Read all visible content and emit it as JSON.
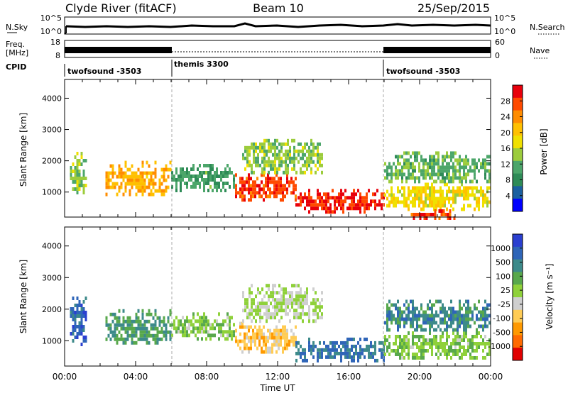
{
  "header": {
    "station": "Clyde River (fitACF)",
    "beam": "Beam 10",
    "date": "25/Sep/2015"
  },
  "top_panels": {
    "nsky_label": "N.Sky",
    "nsky_ticks": [
      "10^5",
      "10^0"
    ],
    "nsearch_label": "N.Search",
    "nsearch_ticks": [
      "10^5",
      "10^0"
    ],
    "freq_label": "Freq.",
    "freq_unit": "[MHz]",
    "freq_ticks": [
      "18",
      "8"
    ],
    "nave_label": "Nave",
    "nave_ticks": [
      "60",
      "0"
    ],
    "cpid_label": "CPID",
    "cpid_segments": [
      {
        "start": 0.0,
        "end": 6.0,
        "label": "twofsound -3503"
      },
      {
        "start": 6.0,
        "end": 18.0,
        "label": "themis 3300"
      },
      {
        "start": 18.0,
        "end": 24.0,
        "label": "twofsound -3503"
      }
    ]
  },
  "panel_labels": {
    "ylabel_power": "Slant Range [km]",
    "ylabel_velocity": "Slant Range [km]"
  },
  "colorbars": {
    "power_label": "Power [dB]",
    "power_ticks": [
      "28",
      "24",
      "20",
      "16",
      "12",
      "8",
      "4"
    ],
    "power_colors": [
      "#e8000b",
      "#ff4a00",
      "#ff8c00",
      "#ffc000",
      "#f0e000",
      "#9ccc3c",
      "#4ca66a",
      "#2e8b57",
      "#1a5fa0",
      "#0000ff"
    ],
    "velocity_label": "Velocity [m s⁻¹]",
    "velocity_ticks": [
      "1000",
      "500",
      "100",
      "25",
      "-25",
      "-100",
      "-500",
      "-1000"
    ],
    "velocity_colors": [
      "#2a3fd0",
      "#2f65b8",
      "#3d8a8a",
      "#58a84c",
      "#8fd13a",
      "#cfcfcf",
      "#ffcc55",
      "#ff9900",
      "#ff6a00",
      "#e00000"
    ]
  },
  "x_axis": {
    "title": "Time UT",
    "ticks": [
      "00:00",
      "04:00",
      "08:00",
      "12:00",
      "16:00",
      "20:00",
      "00:00"
    ]
  },
  "chart_data": [
    {
      "type": "heatmap",
      "title": "Power",
      "xlabel": "Time UT",
      "ylabel": "Slant Range [km]",
      "xlim": [
        0,
        24
      ],
      "ylim": [
        200,
        4600
      ],
      "yticks": [
        1000,
        2000,
        3000,
        4000
      ],
      "colorbar_label": "Power [dB]",
      "colorbar_range": [
        0,
        32
      ],
      "regions": [
        {
          "t0": 0.3,
          "t1": 1.2,
          "r0": 900,
          "r1": 2400,
          "value": 14
        },
        {
          "t0": 2.3,
          "t1": 6.0,
          "r0": 900,
          "r1": 2000,
          "value": 22
        },
        {
          "t0": 6.0,
          "t1": 9.5,
          "r0": 1100,
          "r1": 1900,
          "value": 10
        },
        {
          "t0": 9.6,
          "t1": 13.0,
          "r0": 700,
          "r1": 1600,
          "value": 28
        },
        {
          "t0": 10.0,
          "t1": 14.5,
          "r0": 1600,
          "r1": 2700,
          "value": 14
        },
        {
          "t0": 13.0,
          "t1": 18.0,
          "r0": 400,
          "r1": 1100,
          "value": 29
        },
        {
          "t0": 18.0,
          "t1": 24.0,
          "r0": 500,
          "r1": 1300,
          "value": 18
        },
        {
          "t0": 18.0,
          "t1": 24.0,
          "r0": 1300,
          "r1": 2300,
          "value": 12
        },
        {
          "t0": 19.5,
          "t1": 22.0,
          "r0": 200,
          "r1": 450,
          "value": 28
        }
      ]
    },
    {
      "type": "heatmap",
      "title": "Velocity",
      "xlabel": "Time UT",
      "ylabel": "Slant Range [km]",
      "xlim": [
        0,
        24
      ],
      "ylim": [
        200,
        4600
      ],
      "yticks": [
        1000,
        2000,
        3000,
        4000
      ],
      "colorbar_label": "Velocity [m s⁻¹]",
      "colorbar_range": [
        -1000,
        1000
      ],
      "regions": [
        {
          "t0": 0.3,
          "t1": 1.2,
          "r0": 900,
          "r1": 2400,
          "value": 700
        },
        {
          "t0": 2.3,
          "t1": 6.0,
          "r0": 900,
          "r1": 2000,
          "value": 400
        },
        {
          "t0": 6.0,
          "t1": 9.5,
          "r0": 1100,
          "r1": 1900,
          "value": 150
        },
        {
          "t0": 9.6,
          "t1": 13.0,
          "r0": 700,
          "r1": 1600,
          "value": -300
        },
        {
          "t0": 10.0,
          "t1": 14.5,
          "r0": 1600,
          "r1": 2800,
          "value": 0
        },
        {
          "t0": 13.0,
          "t1": 18.0,
          "r0": 400,
          "r1": 1100,
          "value": 600
        },
        {
          "t0": 18.0,
          "t1": 24.0,
          "r0": 500,
          "r1": 1300,
          "value": 150
        },
        {
          "t0": 18.0,
          "t1": 24.0,
          "r0": 1300,
          "r1": 2300,
          "value": 500
        }
      ]
    }
  ]
}
